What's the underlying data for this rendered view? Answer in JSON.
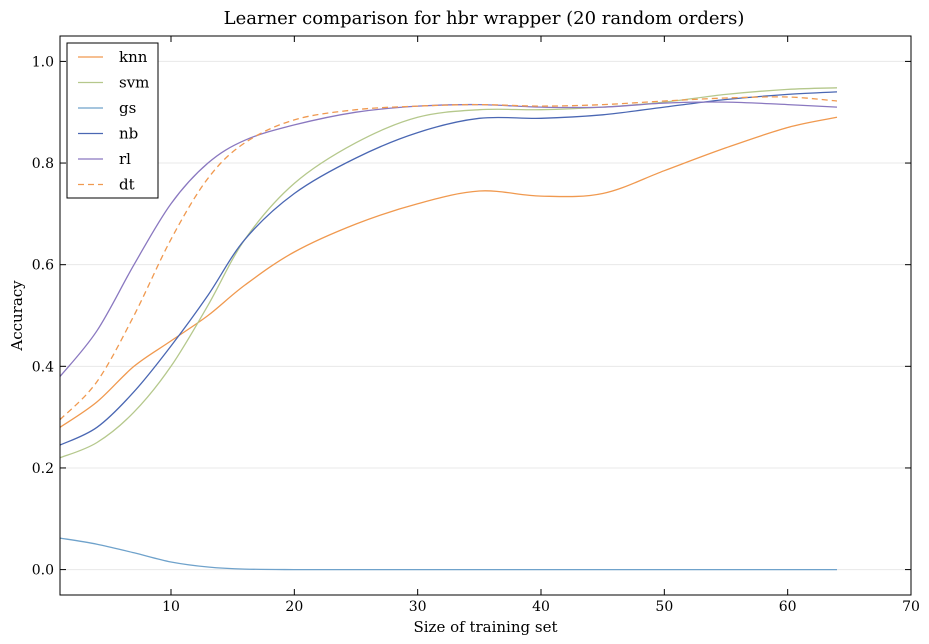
{
  "chart_data": {
    "type": "line",
    "title": "Learner comparison for hbr wrapper (20 random orders)",
    "xlabel": "Size of training set",
    "ylabel": "Accuracy",
    "xlim": [
      1,
      70
    ],
    "ylim": [
      -0.05,
      1.05
    ],
    "xticks": [
      "10",
      "20",
      "30",
      "40",
      "50",
      "60",
      "70"
    ],
    "yticks": [
      "0.0",
      "0.2",
      "0.4",
      "0.6",
      "0.8",
      "1.0"
    ],
    "grid": "horizontal",
    "legend_position": "top-left",
    "x": [
      1,
      4,
      7,
      10,
      13,
      16,
      20,
      25,
      30,
      35,
      40,
      45,
      50,
      55,
      60,
      64
    ],
    "series": [
      {
        "name": "knn",
        "color": "#f0994f",
        "dash": false,
        "values": [
          0.28,
          0.33,
          0.4,
          0.45,
          0.5,
          0.56,
          0.625,
          0.68,
          0.72,
          0.745,
          0.735,
          0.74,
          0.785,
          0.83,
          0.87,
          0.89
        ]
      },
      {
        "name": "svm",
        "color": "#b5c88c",
        "dash": false,
        "values": [
          0.22,
          0.25,
          0.31,
          0.4,
          0.52,
          0.65,
          0.76,
          0.84,
          0.89,
          0.905,
          0.905,
          0.91,
          0.92,
          0.935,
          0.945,
          0.948
        ]
      },
      {
        "name": "gs",
        "color": "#6fa2cb",
        "dash": false,
        "values": [
          0.062,
          0.05,
          0.033,
          0.015,
          0.005,
          0.001,
          0.0,
          0.0,
          0.0,
          0.0,
          0.0,
          0.0,
          0.0,
          0.0,
          0.0,
          0.0
        ]
      },
      {
        "name": "nb",
        "color": "#4a67b3",
        "dash": false,
        "values": [
          0.245,
          0.28,
          0.35,
          0.44,
          0.54,
          0.65,
          0.74,
          0.81,
          0.86,
          0.888,
          0.888,
          0.895,
          0.91,
          0.925,
          0.935,
          0.94
        ]
      },
      {
        "name": "rl",
        "color": "#8a78c0",
        "dash": false,
        "values": [
          0.38,
          0.47,
          0.6,
          0.72,
          0.8,
          0.845,
          0.875,
          0.9,
          0.912,
          0.915,
          0.91,
          0.91,
          0.918,
          0.92,
          0.915,
          0.91
        ]
      },
      {
        "name": "dt",
        "color": "#f0994f",
        "dash": true,
        "values": [
          0.295,
          0.37,
          0.5,
          0.65,
          0.77,
          0.84,
          0.885,
          0.905,
          0.912,
          0.915,
          0.912,
          0.915,
          0.922,
          0.928,
          0.93,
          0.922
        ]
      }
    ]
  }
}
